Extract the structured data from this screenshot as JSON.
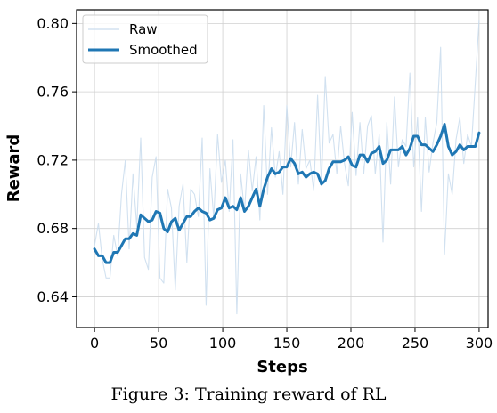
{
  "figure": {
    "caption": "Figure 3: Training reward of RL"
  },
  "chart_data": {
    "type": "line",
    "xlabel": "Steps",
    "ylabel": "Reward",
    "xlim": [
      -14,
      307
    ],
    "ylim": [
      0.622,
      0.808
    ],
    "xticks": [
      0,
      50,
      100,
      150,
      200,
      250,
      300
    ],
    "yticks": [
      0.64,
      0.68,
      0.72,
      0.76,
      0.8
    ],
    "ytick_labels": [
      "0.64",
      "0.68",
      "0.72",
      "0.76",
      "0.80"
    ],
    "grid": true,
    "legend_position": "top-left",
    "colors": {
      "raw": "#c9dced",
      "smoothed": "#1f77b4"
    },
    "series": [
      {
        "name": "Raw",
        "x": [
          0,
          3,
          6,
          9,
          12,
          15,
          18,
          21,
          24,
          27,
          30,
          33,
          36,
          39,
          42,
          45,
          48,
          51,
          54,
          57,
          60,
          63,
          66,
          69,
          72,
          75,
          78,
          81,
          84,
          87,
          90,
          93,
          96,
          99,
          102,
          105,
          108,
          111,
          114,
          117,
          120,
          123,
          126,
          129,
          132,
          135,
          138,
          141,
          144,
          147,
          150,
          153,
          156,
          159,
          162,
          165,
          168,
          171,
          174,
          177,
          180,
          183,
          186,
          189,
          192,
          195,
          198,
          201,
          204,
          207,
          210,
          213,
          216,
          219,
          222,
          225,
          228,
          231,
          234,
          237,
          240,
          243,
          246,
          249,
          252,
          255,
          258,
          261,
          264,
          267,
          270,
          273,
          276,
          279,
          282,
          285,
          288,
          291,
          294,
          297,
          300
        ],
        "y": [
          0.67,
          0.683,
          0.662,
          0.651,
          0.651,
          0.676,
          0.664,
          0.7,
          0.72,
          0.668,
          0.712,
          0.681,
          0.733,
          0.663,
          0.656,
          0.71,
          0.722,
          0.651,
          0.648,
          0.703,
          0.692,
          0.644,
          0.693,
          0.706,
          0.66,
          0.703,
          0.7,
          0.687,
          0.733,
          0.635,
          0.715,
          0.686,
          0.735,
          0.707,
          0.72,
          0.69,
          0.732,
          0.63,
          0.712,
          0.69,
          0.726,
          0.702,
          0.722,
          0.685,
          0.752,
          0.7,
          0.739,
          0.71,
          0.725,
          0.7,
          0.752,
          0.716,
          0.742,
          0.706,
          0.738,
          0.715,
          0.72,
          0.702,
          0.758,
          0.706,
          0.769,
          0.73,
          0.735,
          0.712,
          0.74,
          0.718,
          0.705,
          0.748,
          0.711,
          0.742,
          0.712,
          0.74,
          0.746,
          0.712,
          0.735,
          0.672,
          0.742,
          0.706,
          0.757,
          0.716,
          0.732,
          0.728,
          0.771,
          0.716,
          0.745,
          0.69,
          0.745,
          0.713,
          0.73,
          0.742,
          0.786,
          0.665,
          0.712,
          0.7,
          0.732,
          0.745,
          0.718,
          0.735,
          0.728,
          0.765,
          0.802
        ]
      },
      {
        "name": "Smoothed",
        "x": [
          0,
          3,
          6,
          9,
          12,
          15,
          18,
          21,
          24,
          27,
          30,
          33,
          36,
          39,
          42,
          45,
          48,
          51,
          54,
          57,
          60,
          63,
          66,
          69,
          72,
          75,
          78,
          81,
          84,
          87,
          90,
          93,
          96,
          99,
          102,
          105,
          108,
          111,
          114,
          117,
          120,
          123,
          126,
          129,
          132,
          135,
          138,
          141,
          144,
          147,
          150,
          153,
          156,
          159,
          162,
          165,
          168,
          171,
          174,
          177,
          180,
          183,
          186,
          189,
          192,
          195,
          198,
          201,
          204,
          207,
          210,
          213,
          216,
          219,
          222,
          225,
          228,
          231,
          234,
          237,
          240,
          243,
          246,
          249,
          252,
          255,
          258,
          261,
          264,
          267,
          270,
          273,
          276,
          279,
          282,
          285,
          288,
          291,
          294,
          297,
          300
        ],
        "y": [
          0.668,
          0.664,
          0.664,
          0.66,
          0.66,
          0.666,
          0.666,
          0.67,
          0.674,
          0.674,
          0.677,
          0.676,
          0.688,
          0.686,
          0.684,
          0.685,
          0.69,
          0.689,
          0.68,
          0.678,
          0.684,
          0.686,
          0.679,
          0.683,
          0.687,
          0.687,
          0.69,
          0.692,
          0.69,
          0.689,
          0.685,
          0.686,
          0.691,
          0.692,
          0.698,
          0.692,
          0.693,
          0.691,
          0.698,
          0.69,
          0.693,
          0.698,
          0.703,
          0.693,
          0.703,
          0.71,
          0.715,
          0.712,
          0.713,
          0.716,
          0.716,
          0.721,
          0.718,
          0.712,
          0.713,
          0.71,
          0.712,
          0.713,
          0.712,
          0.706,
          0.708,
          0.715,
          0.719,
          0.719,
          0.719,
          0.72,
          0.722,
          0.717,
          0.716,
          0.723,
          0.723,
          0.719,
          0.724,
          0.725,
          0.728,
          0.718,
          0.72,
          0.726,
          0.726,
          0.726,
          0.728,
          0.723,
          0.727,
          0.734,
          0.734,
          0.729,
          0.729,
          0.727,
          0.725,
          0.729,
          0.734,
          0.741,
          0.728,
          0.723,
          0.725,
          0.729,
          0.726,
          0.728,
          0.728,
          0.728,
          0.736
        ]
      }
    ]
  }
}
